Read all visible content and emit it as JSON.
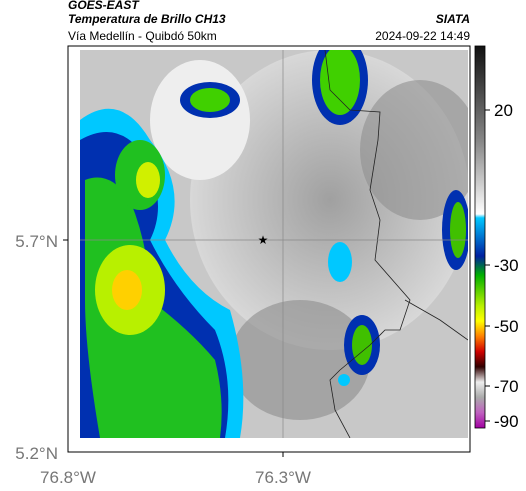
{
  "header": {
    "product": "GOES-EAST",
    "title": "Temperatura de Brillo CH13",
    "subtitle": "Vía Medellín - Quibdó 50km",
    "source": "SIATA",
    "datetime": "2024-09-22 14:49"
  },
  "axes": {
    "lat_ticks": [
      "5.7°N",
      "5.2°N"
    ],
    "lon_ticks": [
      "76.8°W",
      "76.3°W"
    ]
  },
  "colorbar": {
    "ticks": [
      20,
      -30,
      -50,
      -70,
      -90
    ]
  }
}
